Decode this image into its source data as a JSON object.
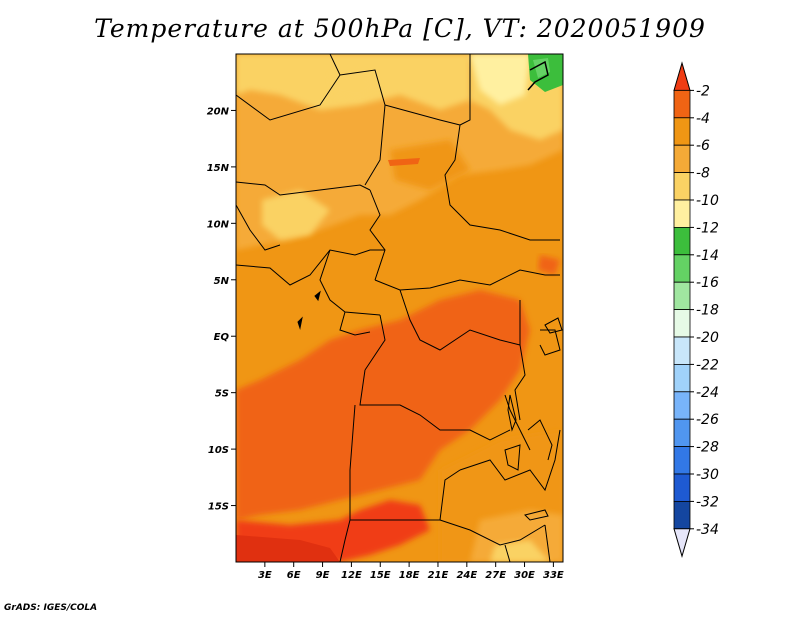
{
  "title": "Temperature at 500hPa [C], VT: 2020051909",
  "credit": "GrADS: IGES/COLA",
  "map": {
    "lat_labels": [
      "20N",
      "15N",
      "10N",
      "5N",
      "EQ",
      "5S",
      "10S",
      "15S"
    ],
    "lat_values": [
      20,
      15,
      10,
      5,
      0,
      -5,
      -10,
      -15
    ],
    "lon_labels": [
      "3E",
      "6E",
      "9E",
      "12E",
      "15E",
      "18E",
      "21E",
      "24E",
      "27E",
      "30E",
      "33E"
    ],
    "lon_values": [
      3,
      6,
      9,
      12,
      15,
      18,
      21,
      24,
      27,
      30,
      33
    ],
    "lat_range": [
      -20,
      25
    ],
    "lon_range": [
      0,
      34
    ],
    "land_borders": "black",
    "field": "Temperature at 500hPa",
    "units": "C"
  },
  "colorbar": {
    "orientation": "vertical",
    "placement": "right",
    "labels": [
      "-2",
      "-4",
      "-6",
      "-8",
      "-10",
      "-12",
      "-14",
      "-16",
      "-18",
      "-20",
      "-22",
      "-24",
      "-26",
      "-28",
      "-30",
      "-32",
      "-34"
    ],
    "colors": [
      "#f03c14",
      "#f06414",
      "#f09614",
      "#f5aa37",
      "#fad264",
      "#fff0a0",
      "#3cbe3c",
      "#64d264",
      "#a0e6a0",
      "#e6fae6",
      "#c8e6fa",
      "#a0d2fa",
      "#78b4fa",
      "#5096f0",
      "#3278e6",
      "#1e5ad2",
      "#1446a0",
      "#0f1e78"
    ],
    "top_arrow_color": "#f03c14",
    "bottom_arrow_color": "#e6e6fa"
  }
}
